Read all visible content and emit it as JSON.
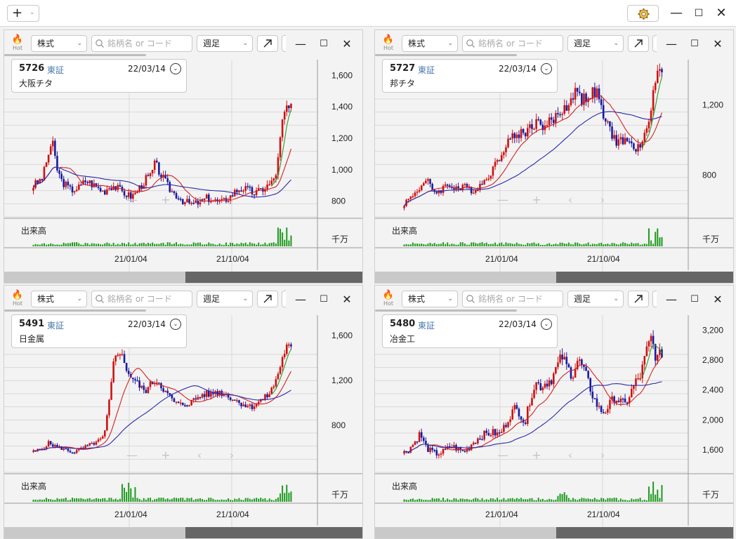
{
  "toolbar": {
    "add_label": "+",
    "add_chevron": "⌄",
    "gear_icon": "gear-icon",
    "minimize": "—",
    "maximize": "☐",
    "close": "✕"
  },
  "panels": [
    {
      "hot_label": "Hot",
      "type_select": "株式",
      "search_placeholder": "銘柄名 or コード",
      "period_select": "週足",
      "code": "5726",
      "market": "東証",
      "date": "22/03/14",
      "name": "大阪チタ",
      "y_ticks": [
        "1,600",
        "1,400",
        "1,200",
        "1,000",
        "800"
      ],
      "y_min": 700,
      "y_max": 1700,
      "volume_label": "出来高",
      "volume_unit": "千万",
      "x_labels": [
        "21/01/04",
        "21/10/04"
      ],
      "price_path": [
        900,
        920,
        950,
        1080,
        1180,
        1010,
        930,
        900,
        870,
        880,
        890,
        930,
        920,
        900,
        880,
        860,
        890,
        900,
        880,
        860,
        840,
        830,
        860,
        900,
        940,
        960,
        1040,
        980,
        930,
        880,
        850,
        830,
        800,
        790,
        780,
        790,
        800,
        820,
        810,
        800,
        790,
        810,
        830,
        860,
        880,
        880,
        870,
        850,
        860,
        880,
        900,
        920,
        1000,
        1280,
        1400,
        1380
      ],
      "accent": "#c00000"
    },
    {
      "hot_label": "Hot",
      "type_select": "株式",
      "search_placeholder": "銘柄名 or コード",
      "period_select": "週足",
      "code": "5727",
      "market": "東証",
      "date": "22/03/14",
      "name": "邦チタ",
      "y_ticks": [
        "1,200",
        "800"
      ],
      "y_min": 560,
      "y_max": 1460,
      "volume_label": "出来高",
      "volume_unit": "千万",
      "x_labels": [
        "21/01/04",
        "21/10/04"
      ],
      "price_path": [
        640,
        660,
        690,
        720,
        750,
        760,
        720,
        700,
        720,
        740,
        740,
        730,
        720,
        730,
        720,
        710,
        740,
        760,
        800,
        840,
        880,
        940,
        1000,
        1010,
        1030,
        1040,
        1050,
        1080,
        1100,
        1090,
        1080,
        1100,
        1120,
        1150,
        1180,
        1200,
        1260,
        1280,
        1230,
        1250,
        1260,
        1280,
        1180,
        1100,
        1050,
        1000,
        990,
        1000,
        980,
        960,
        950,
        980,
        1100,
        1250,
        1380,
        1400
      ],
      "accent": "#c00000"
    },
    {
      "hot_label": "Hot",
      "type_select": "株式",
      "search_placeholder": "銘柄名 or コード",
      "period_select": "週足",
      "code": "5491",
      "market": "東証",
      "date": "22/03/14",
      "name": "日金属",
      "y_ticks": [
        "1,600",
        "1,200",
        "800"
      ],
      "y_min": 380,
      "y_max": 1780,
      "volume_label": "出来高",
      "volume_unit": "千万",
      "x_labels": [
        "21/01/04",
        "21/10/04"
      ],
      "price_path": [
        560,
        580,
        600,
        640,
        620,
        600,
        590,
        570,
        560,
        580,
        600,
        620,
        640,
        660,
        700,
        1000,
        1400,
        1480,
        1350,
        1250,
        1200,
        1150,
        1100,
        1150,
        1200,
        1180,
        1100,
        1050,
        1000,
        980,
        990,
        1000,
        1030,
        1060,
        1080,
        1070,
        1100,
        1090,
        1080,
        1050,
        1020,
        1000,
        980,
        960,
        990,
        1020,
        1050,
        1100,
        1200,
        1350,
        1500,
        1480
      ],
      "accent": "#c00000"
    },
    {
      "hot_label": "Hot",
      "type_select": "株式",
      "search_placeholder": "銘柄名 or コード",
      "period_select": "週足",
      "code": "5480",
      "market": "東証",
      "date": "22/03/14",
      "name": "冶金工",
      "y_ticks": [
        "3,200",
        "2,800",
        "2,400",
        "2,000",
        "1,600"
      ],
      "y_min": 1300,
      "y_max": 3400,
      "volume_label": "出来高",
      "volume_unit": "千万",
      "x_labels": [
        "21/01/04",
        "21/10/04"
      ],
      "price_path": [
        1560,
        1620,
        1700,
        1820,
        1650,
        1580,
        1550,
        1560,
        1600,
        1650,
        1620,
        1580,
        1600,
        1700,
        1750,
        1800,
        1820,
        1830,
        1800,
        1900,
        2050,
        2150,
        2100,
        1950,
        2300,
        2500,
        2450,
        2500,
        2550,
        2700,
        2850,
        2700,
        2600,
        2800,
        2700,
        2500,
        2300,
        2150,
        2100,
        2200,
        2300,
        2250,
        2200,
        2350,
        2500,
        2600,
        2900,
        3100,
        2800,
        2900
      ],
      "accent": "#c00000"
    }
  ]
}
